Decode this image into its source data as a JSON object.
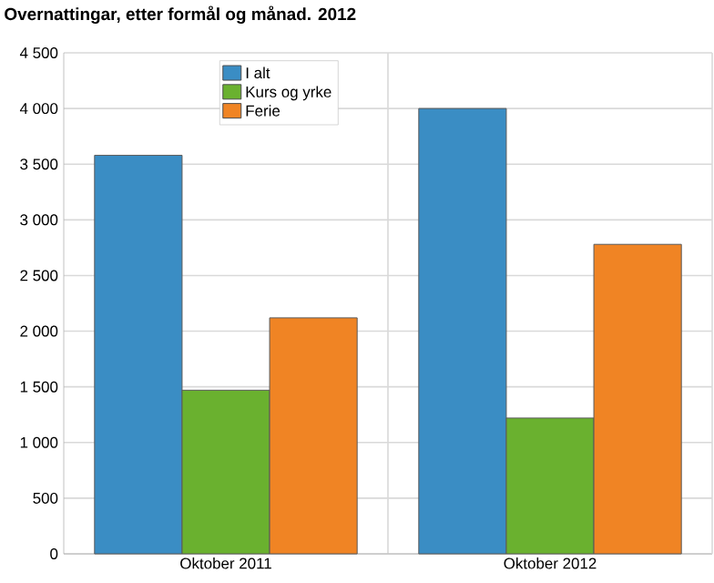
{
  "chart_data": {
    "type": "bar",
    "title": "Overnattingar, etter formål og månad. 2012",
    "categories": [
      "Oktober 2011",
      "Oktober 2012"
    ],
    "series": [
      {
        "name": "I alt",
        "color": "#3a8dc4",
        "values": [
          3580,
          4000
        ]
      },
      {
        "name": "Kurs og yrke",
        "color": "#6ab12f",
        "values": [
          1470,
          1220
        ]
      },
      {
        "name": "Ferie",
        "color": "#f08424",
        "values": [
          2120,
          2780
        ]
      }
    ],
    "ylim": [
      0,
      4500
    ],
    "yticks": [
      {
        "value": 0,
        "label": "0"
      },
      {
        "value": 500,
        "label": "500"
      },
      {
        "value": 1000,
        "label": "1 000"
      },
      {
        "value": 1500,
        "label": "1 500"
      },
      {
        "value": 2000,
        "label": "2 000"
      },
      {
        "value": 2500,
        "label": "2 500"
      },
      {
        "value": 3000,
        "label": "3 000"
      },
      {
        "value": 3500,
        "label": "3 500"
      },
      {
        "value": 4000,
        "label": "4 000"
      },
      {
        "value": 4500,
        "label": "4 500"
      }
    ],
    "grid": true,
    "legend": "top left"
  }
}
